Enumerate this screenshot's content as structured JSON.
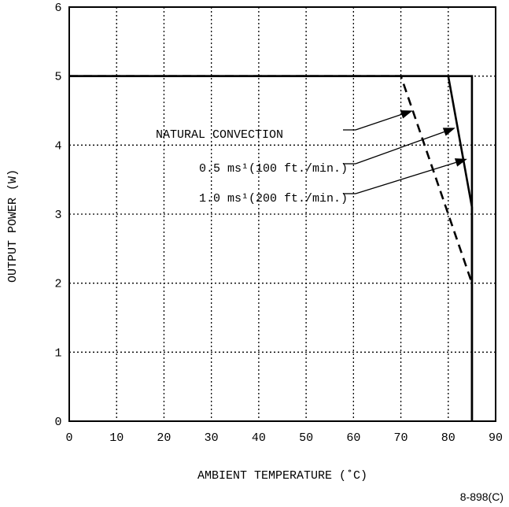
{
  "chart_data": {
    "type": "line",
    "xlabel": "AMBIENT TEMPERATURE (˚C)",
    "ylabel": "OUTPUT POWER (W)",
    "xlim": [
      0,
      90
    ],
    "ylim": [
      0,
      6
    ],
    "xticks": [
      0,
      10,
      20,
      30,
      40,
      50,
      60,
      70,
      80,
      90
    ],
    "yticks": [
      0,
      1,
      2,
      3,
      4,
      5,
      6
    ],
    "grid": true,
    "series": [
      {
        "name": "NATURAL CONVECTION",
        "style": "dashed",
        "x": [
          0,
          70,
          85
        ],
        "y": [
          5,
          5,
          2
        ]
      },
      {
        "name": "0.5 ms¹(100 ft./min.)",
        "style": "solid",
        "x": [
          0,
          80,
          85,
          85
        ],
        "y": [
          5,
          5,
          3.1,
          0
        ]
      },
      {
        "name": "1.0 ms¹(200 ft./min.)",
        "style": "solid",
        "x": [
          0,
          85,
          85
        ],
        "y": [
          5,
          5,
          0
        ]
      }
    ],
    "annotations": [
      {
        "text": "NATURAL CONVECTION",
        "series": 0,
        "arrow_to": [
          72.5,
          4.5
        ]
      },
      {
        "text": "0.5 ms¹(100 ft./min.)",
        "series": 1,
        "arrow_to": [
          81.5,
          4.25
        ]
      },
      {
        "text": "1.0 ms¹(200 ft./min.)",
        "series": 2,
        "arrow_to": [
          84,
          3.8
        ]
      }
    ],
    "figure_id": "8-898(C)"
  }
}
